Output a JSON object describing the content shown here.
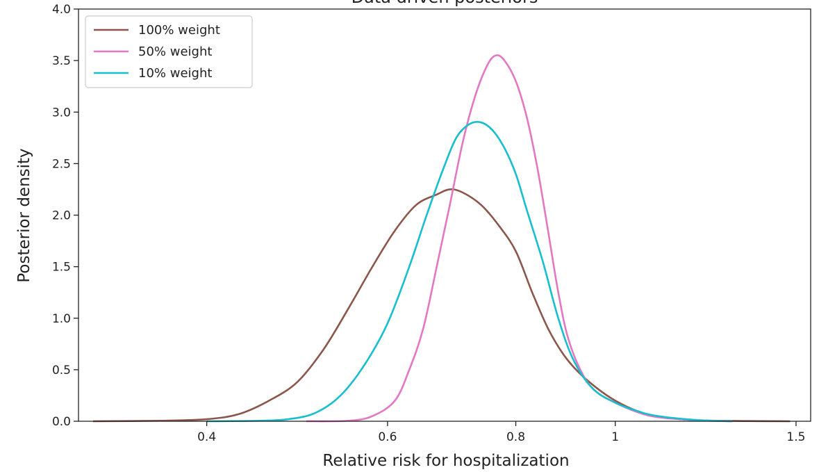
{
  "chart_data": {
    "type": "line",
    "title": "Data driven posteriors",
    "xlabel": "Relative risk for hospitalization",
    "ylabel": "Posterior density",
    "x_scale": "log",
    "xlim": [
      0.3,
      1.55
    ],
    "ylim": [
      0,
      4.0
    ],
    "x_ticks": [
      0.4,
      0.6,
      0.8,
      1,
      1.5
    ],
    "x_tick_labels": [
      "0.4",
      "0.6",
      "0.8",
      "1",
      "1.5"
    ],
    "y_ticks": [
      0,
      0.5,
      1.0,
      1.5,
      2.0,
      2.5,
      3.0,
      3.5,
      4.0
    ],
    "y_tick_labels": [
      "0.0",
      "0.5",
      "1.0",
      "1.5",
      "2.0",
      "2.5",
      "3.0",
      "3.5",
      "4.0"
    ],
    "grid": false,
    "legend_position": "top-left",
    "series": [
      {
        "name": "100% weight",
        "color": "#8c564b",
        "points": [
          [
            0.31,
            0
          ],
          [
            0.36,
            0.005
          ],
          [
            0.4,
            0.02
          ],
          [
            0.43,
            0.07
          ],
          [
            0.46,
            0.2
          ],
          [
            0.49,
            0.38
          ],
          [
            0.52,
            0.7
          ],
          [
            0.55,
            1.1
          ],
          [
            0.58,
            1.5
          ],
          [
            0.61,
            1.85
          ],
          [
            0.64,
            2.1
          ],
          [
            0.67,
            2.2
          ],
          [
            0.69,
            2.25
          ],
          [
            0.71,
            2.22
          ],
          [
            0.74,
            2.1
          ],
          [
            0.77,
            1.9
          ],
          [
            0.8,
            1.65
          ],
          [
            0.83,
            1.25
          ],
          [
            0.86,
            0.9
          ],
          [
            0.89,
            0.65
          ],
          [
            0.92,
            0.48
          ],
          [
            0.96,
            0.32
          ],
          [
            1.0,
            0.2
          ],
          [
            1.05,
            0.1
          ],
          [
            1.1,
            0.045
          ],
          [
            1.2,
            0.01
          ],
          [
            1.35,
            0.002
          ],
          [
            1.48,
            0
          ]
        ]
      },
      {
        "name": "50% weight",
        "color": "#e377c2",
        "points": [
          [
            0.5,
            0
          ],
          [
            0.55,
            0.005
          ],
          [
            0.58,
            0.05
          ],
          [
            0.61,
            0.2
          ],
          [
            0.63,
            0.5
          ],
          [
            0.65,
            0.9
          ],
          [
            0.67,
            1.5
          ],
          [
            0.69,
            2.1
          ],
          [
            0.71,
            2.7
          ],
          [
            0.73,
            3.15
          ],
          [
            0.75,
            3.45
          ],
          [
            0.765,
            3.55
          ],
          [
            0.78,
            3.5
          ],
          [
            0.8,
            3.3
          ],
          [
            0.82,
            2.95
          ],
          [
            0.84,
            2.45
          ],
          [
            0.86,
            1.85
          ],
          [
            0.88,
            1.25
          ],
          [
            0.9,
            0.8
          ],
          [
            0.93,
            0.45
          ],
          [
            0.96,
            0.28
          ],
          [
            1.0,
            0.18
          ],
          [
            1.05,
            0.09
          ],
          [
            1.1,
            0.04
          ],
          [
            1.2,
            0.01
          ],
          [
            1.3,
            0
          ]
        ]
      },
      {
        "name": "10% weight",
        "color": "#17becf",
        "points": [
          [
            0.4,
            0
          ],
          [
            0.45,
            0.005
          ],
          [
            0.48,
            0.02
          ],
          [
            0.51,
            0.08
          ],
          [
            0.54,
            0.25
          ],
          [
            0.57,
            0.55
          ],
          [
            0.6,
            0.95
          ],
          [
            0.63,
            1.5
          ],
          [
            0.655,
            2.0
          ],
          [
            0.68,
            2.45
          ],
          [
            0.7,
            2.75
          ],
          [
            0.72,
            2.88
          ],
          [
            0.74,
            2.9
          ],
          [
            0.76,
            2.82
          ],
          [
            0.78,
            2.65
          ],
          [
            0.8,
            2.4
          ],
          [
            0.82,
            2.05
          ],
          [
            0.85,
            1.55
          ],
          [
            0.88,
            1.0
          ],
          [
            0.91,
            0.6
          ],
          [
            0.95,
            0.32
          ],
          [
            1.0,
            0.18
          ],
          [
            1.05,
            0.1
          ],
          [
            1.1,
            0.05
          ],
          [
            1.2,
            0.012
          ],
          [
            1.3,
            0
          ]
        ]
      }
    ]
  }
}
